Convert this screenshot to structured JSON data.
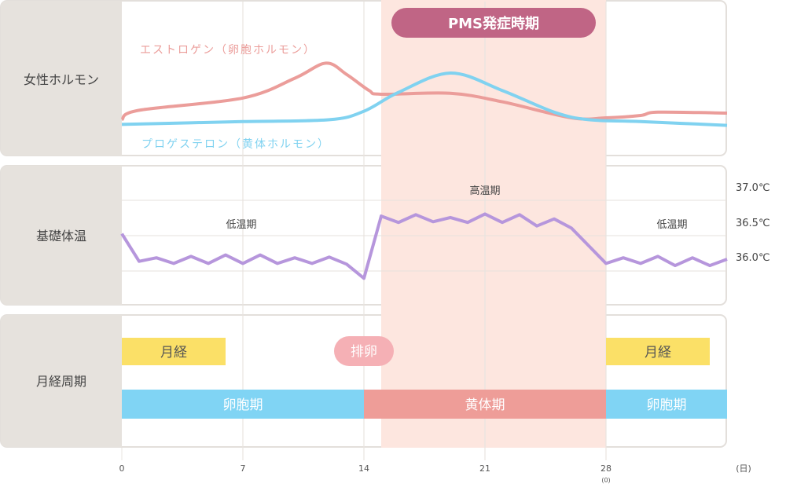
{
  "pms_label": "PMS発症時期",
  "rows": {
    "hormone": "女性ホルモン",
    "temperature": "基礎体温",
    "cycle": "月経周期"
  },
  "colors": {
    "estrogen": "#eb9d9a",
    "progesterone": "#80d2f0",
    "temperature": "#b696dc",
    "pms_band": "#fde6df",
    "pms_pill": "#c06585",
    "menstruation": "#fbe067",
    "ovulation": "#f5b0b5",
    "follicular": "#80d4f4",
    "luteal": "#ee9d98",
    "label_column": "#e6e2dd"
  },
  "chart_data": [
    {
      "type": "line",
      "panel": "女性ホルモン",
      "x_unit": "日",
      "xlim": [
        0,
        35
      ],
      "series": [
        {
          "name": "エストロゲン（卵胞ホルモン）",
          "x": [
            0,
            1,
            7,
            10,
            11.8,
            13,
            14.3,
            15,
            19,
            22,
            26,
            28,
            30,
            31,
            35
          ],
          "y": [
            23,
            33,
            46,
            67,
            83,
            71,
            54,
            50,
            51,
            42,
            25,
            25,
            27.5,
            31,
            30
          ]
        },
        {
          "name": "プロゲステロン（黄体ホルモン）",
          "x": [
            0,
            7,
            12,
            14,
            16,
            19,
            22,
            25,
            27,
            30,
            35
          ],
          "y": [
            18,
            21,
            23,
            32,
            52,
            72.5,
            54,
            31,
            23,
            21,
            17
          ]
        }
      ]
    },
    {
      "type": "line",
      "panel": "基礎体温",
      "x_unit": "日",
      "ylabel_ticks": [
        "37.0℃",
        "36.5℃",
        "36.0℃"
      ],
      "ylim": [
        35.6,
        37.2
      ],
      "annotations": [
        "低温期",
        "高温期",
        "低温期"
      ],
      "x": [
        0,
        1,
        2,
        3,
        4,
        5,
        6,
        7,
        8,
        9,
        10,
        11,
        12,
        13,
        14,
        15,
        16,
        17,
        18,
        19,
        20,
        21,
        22,
        23,
        24,
        25,
        26,
        27,
        28,
        29,
        30,
        31,
        32,
        33,
        34,
        35
      ],
      "y": [
        36.36,
        35.97,
        36.02,
        35.94,
        36.04,
        35.94,
        36.06,
        35.94,
        36.06,
        35.94,
        36.02,
        35.94,
        36.03,
        35.93,
        35.73,
        36.61,
        36.52,
        36.63,
        36.53,
        36.59,
        36.52,
        36.64,
        36.52,
        36.63,
        36.47,
        36.57,
        36.44,
        36.19,
        35.94,
        36.02,
        35.94,
        36.04,
        35.91,
        36.02,
        35.91,
        36.0
      ]
    },
    {
      "type": "timeline",
      "panel": "月経周期",
      "menstruation": [
        {
          "label": "月経",
          "start": 0,
          "end": 6
        },
        {
          "label": "月経",
          "start": 28,
          "end": 34
        }
      ],
      "ovulation": {
        "label": "排卵",
        "day": 14
      },
      "phases": [
        {
          "label": "卵胞期",
          "start": 0,
          "end": 14
        },
        {
          "label": "黄体期",
          "start": 14,
          "end": 28
        },
        {
          "label": "卵胞期",
          "start": 28,
          "end": 35
        }
      ]
    }
  ],
  "x_axis": {
    "ticks": [
      "0",
      "7",
      "14",
      "21",
      "28"
    ],
    "tick_days": [
      0,
      7,
      14,
      21,
      28
    ],
    "sub_label_28": "(0)",
    "unit": "(日)"
  },
  "pms_period": {
    "start": 15,
    "end": 28
  }
}
